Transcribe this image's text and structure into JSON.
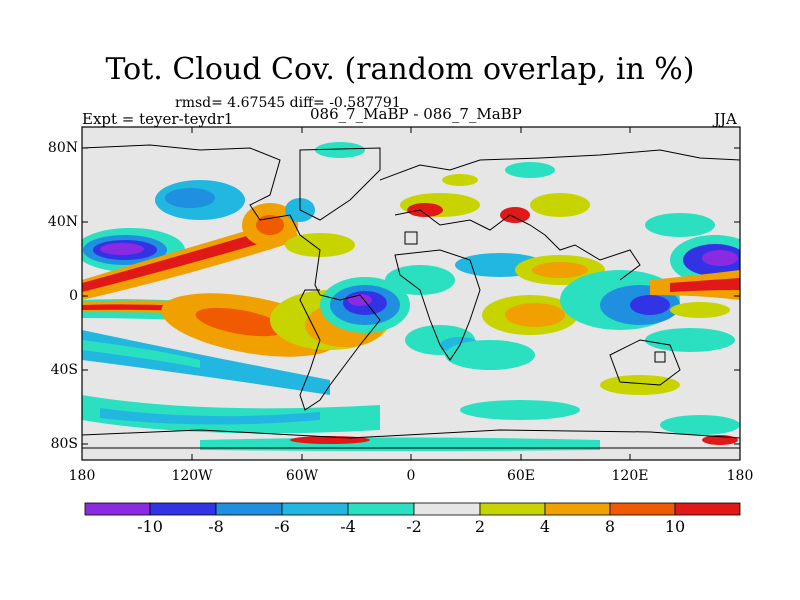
{
  "header": {
    "title": "Tot. Cloud Cov. (random overlap, in %)",
    "stats": "rmsd= 4.67545 diff= -0.587791",
    "experiment": "Expt = teyer-teydr1",
    "case": "086_7_MaBP - 086_7_MaBP",
    "season": "JJA"
  },
  "axes": {
    "lat_ticks": [
      "80N",
      "40N",
      "0",
      "40S",
      "80S"
    ],
    "lon_ticks": [
      "180",
      "120W",
      "60W",
      "0",
      "60E",
      "120E",
      "180"
    ]
  },
  "colorbar": {
    "labels": [
      "-10",
      "-8",
      "-6",
      "-4",
      "-2",
      "2",
      "4",
      "8",
      "10"
    ],
    "colors": [
      "#8a2be2",
      "#3333e6",
      "#1f8fe0",
      "#22b7e0",
      "#2ae0c0",
      "#e6e6e6",
      "#c8d400",
      "#f0a000",
      "#f05a00",
      "#e01818"
    ]
  },
  "palette": {
    "ocean_bg": "#e6e6e6",
    "coast": "#000000"
  }
}
